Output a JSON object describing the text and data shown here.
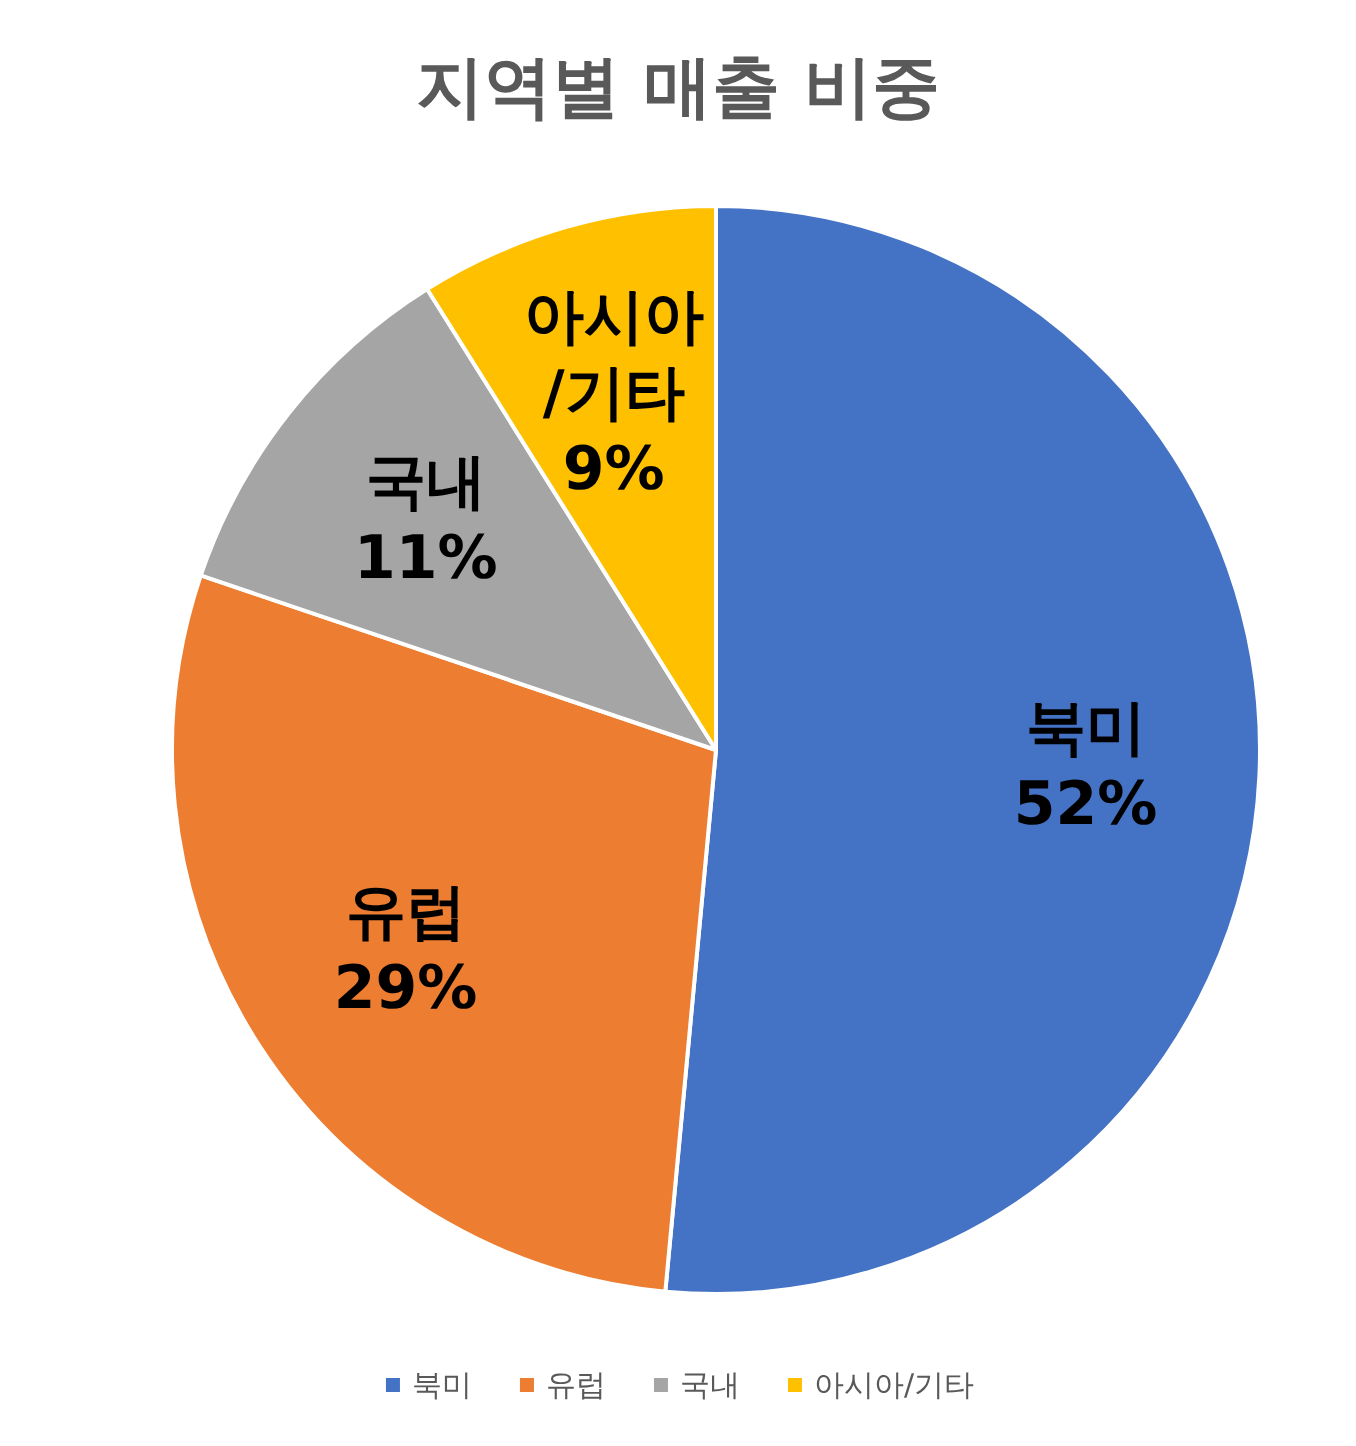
{
  "chart_data": {
    "type": "pie",
    "title": "지역별 매출 비중",
    "categories": [
      "북미",
      "유럽",
      "국내",
      "아시아/기타"
    ],
    "values": [
      52,
      29,
      11,
      9
    ],
    "value_labels": [
      "52%",
      "29%",
      "11%",
      "9%"
    ],
    "colors": [
      "#4472c4",
      "#ed7d31",
      "#a5a5a5",
      "#ffc000"
    ],
    "legend": "bottom"
  }
}
